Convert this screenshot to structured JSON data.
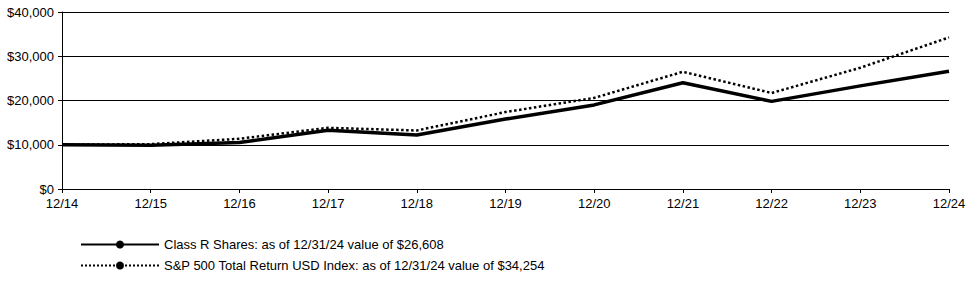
{
  "chart_data": {
    "type": "line",
    "categories": [
      "12/14",
      "12/15",
      "12/16",
      "12/17",
      "12/18",
      "12/19",
      "12/20",
      "12/21",
      "12/22",
      "12/23",
      "12/24"
    ],
    "series": [
      {
        "name": "Class R Shares: as of 12/31/24 value of $26,608",
        "color": "#000000",
        "line_style": "solid",
        "values": [
          10000,
          9900,
          10500,
          13300,
          12200,
          15800,
          19000,
          24000,
          19800,
          23300,
          26608
        ]
      },
      {
        "name": "S&P 500 Total Return USD Index: as of 12/31/24 value of $34,254",
        "color": "#000000",
        "line_style": "dotted",
        "values": [
          10000,
          10138,
          11351,
          13829,
          13223,
          17386,
          20585,
          26494,
          21696,
          27399,
          34254
        ]
      }
    ],
    "ylim": [
      0,
      40000
    ],
    "yticks": [
      {
        "value": 0,
        "label": "$0"
      },
      {
        "value": 10000,
        "label": "$10,000"
      },
      {
        "value": 20000,
        "label": "$20,000"
      },
      {
        "value": 30000,
        "label": "$30,000"
      },
      {
        "value": 40000,
        "label": "$40,000"
      }
    ],
    "grid": true,
    "legend": "bottom-left"
  }
}
